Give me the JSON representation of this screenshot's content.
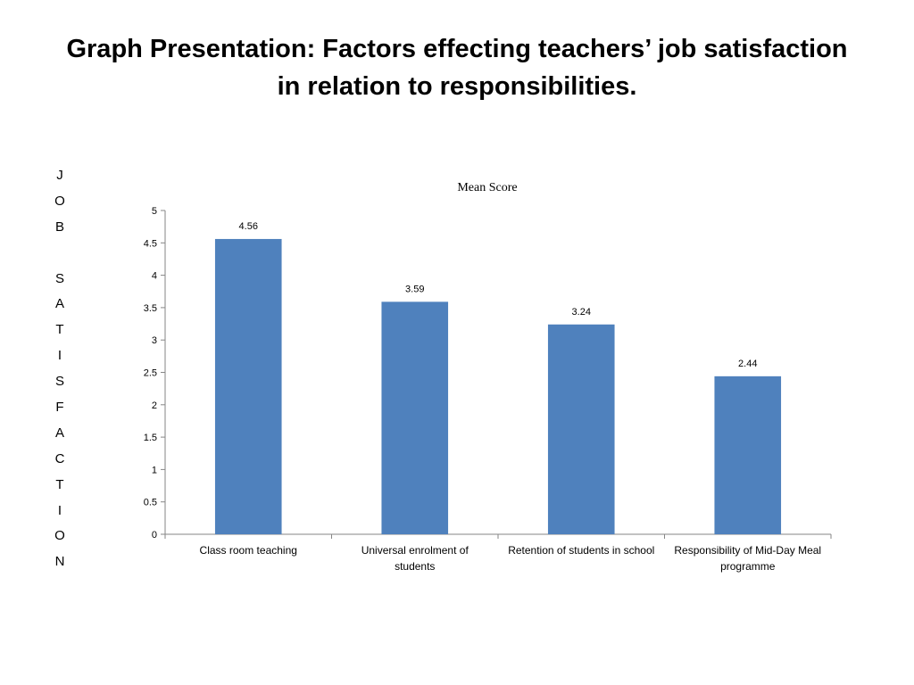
{
  "slide": {
    "title_line1": "Graph Presentation: Factors effecting teachers’ job satisfaction",
    "title_line2": "in relation to responsibilities.",
    "vertical_label": "JOB SATISFACTION"
  },
  "chart_data": {
    "type": "bar",
    "title": "Mean Score",
    "categories": [
      [
        "Class room teaching"
      ],
      [
        "Universal enrolment of",
        "students"
      ],
      [
        "Retention of students in school"
      ],
      [
        "Responsibility of Mid-Day Meal",
        "programme"
      ]
    ],
    "values": [
      4.56,
      3.59,
      3.24,
      2.44
    ],
    "data_labels": [
      "4.56",
      "3.59",
      "3.24",
      "2.44"
    ],
    "ylim": [
      0,
      5
    ],
    "yticks": [
      "0",
      "0.5",
      "1",
      "1.5",
      "2",
      "2.5",
      "3",
      "3.5",
      "4",
      "4.5",
      "5"
    ],
    "xlabel": "",
    "ylabel": "",
    "grid": false,
    "legend": "none",
    "bar_color": "#4F81BD",
    "axis_color": "#868686"
  }
}
